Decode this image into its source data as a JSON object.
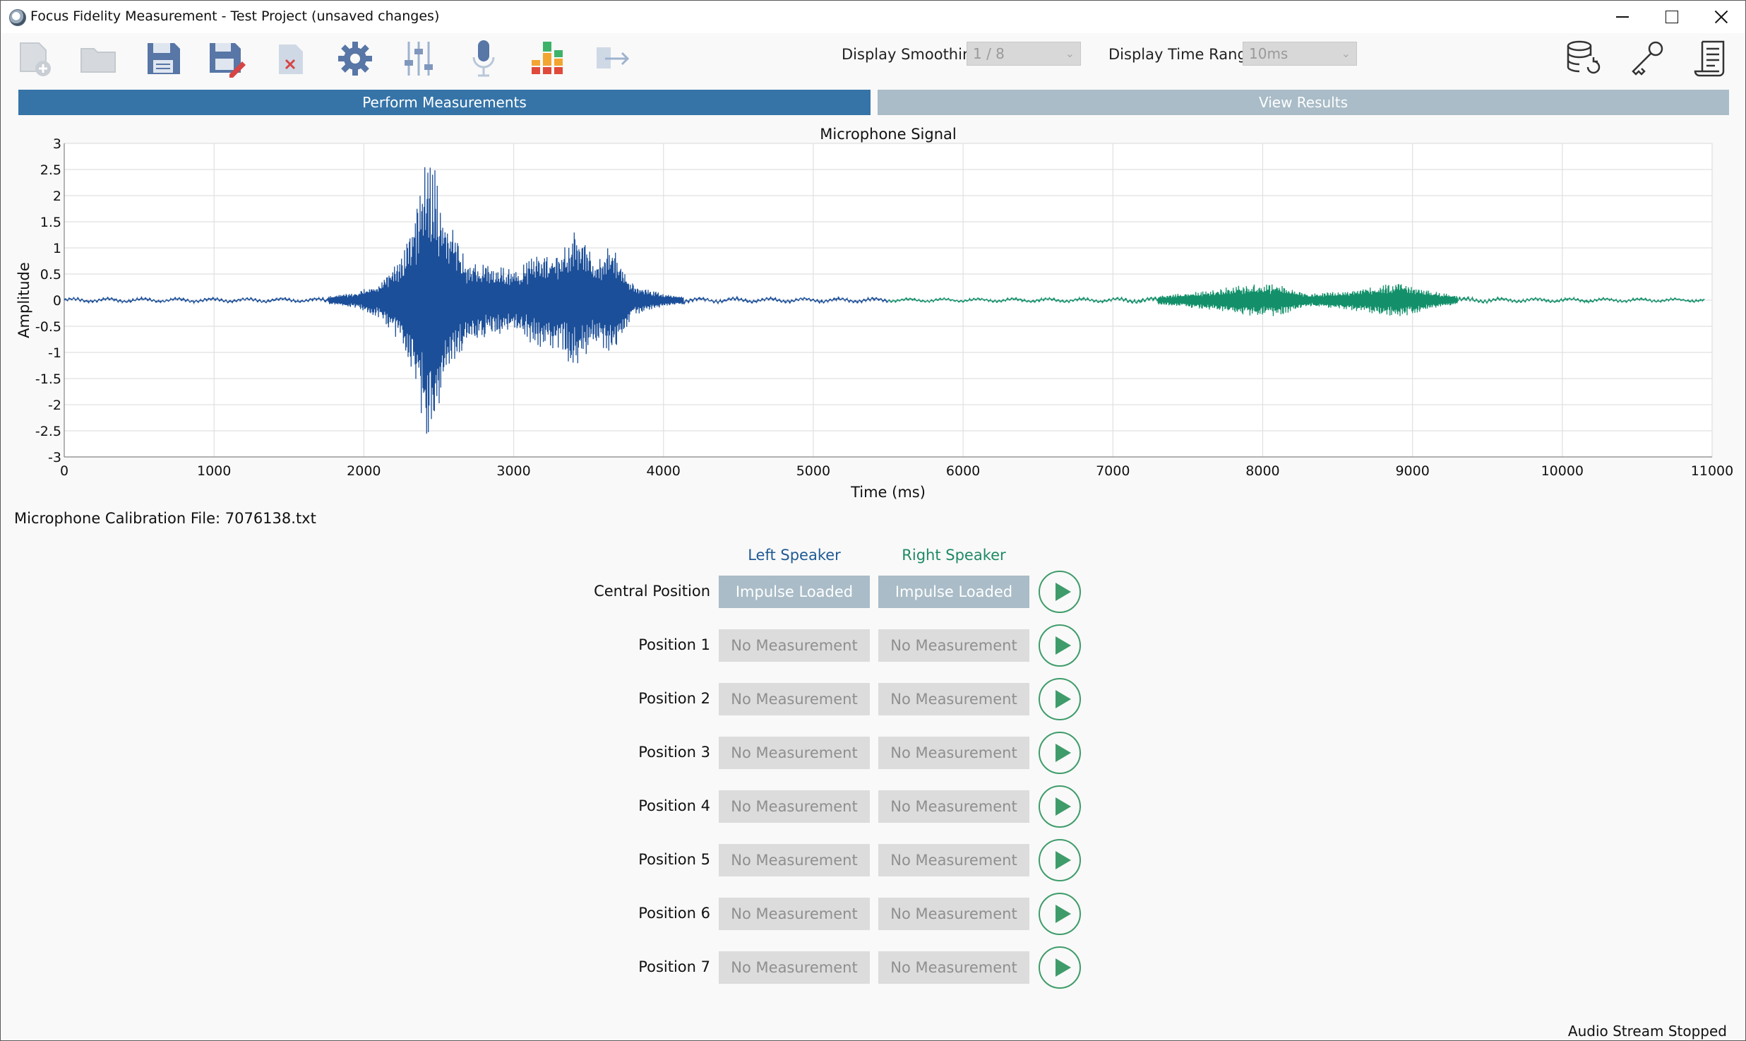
{
  "window": {
    "title": "Focus Fidelity Measurement - Test Project (unsaved changes)"
  },
  "toolbar": {
    "tools": [
      "new-project-icon",
      "open-folder-icon",
      "save-icon",
      "save-as-icon",
      "close-project-icon",
      "settings-gear-icon",
      "mixer-sliders-icon",
      "microphone-icon",
      "level-meter-icon",
      "export-arrow-icon"
    ],
    "smoothing_label": "Display Smoothing",
    "smoothing_value": "1 / 8",
    "time_range_label": "Display Time Range",
    "time_range_value": "10ms",
    "right_tools": [
      "database-refresh-icon",
      "key-icon",
      "document-scroll-icon"
    ]
  },
  "tabs": {
    "measure": "Perform Measurements",
    "results": "View Results"
  },
  "chart_data": {
    "type": "line",
    "title": "Microphone Signal",
    "xlabel": "Time (ms)",
    "ylabel": "Amplitude",
    "xlim": [
      0,
      11000
    ],
    "ylim": [
      -3,
      3
    ],
    "x_ticks": [
      0,
      1000,
      2000,
      3000,
      4000,
      5000,
      6000,
      7000,
      8000,
      9000,
      10000,
      11000
    ],
    "y_ticks": [
      3,
      2.5,
      2,
      1.5,
      1,
      0.5,
      0,
      -0.5,
      -1,
      -1.5,
      -2,
      -2.5,
      -3
    ],
    "grid": true,
    "series": [
      {
        "color": "#1c4f99",
        "x_range": [
          0,
          5500
        ],
        "envelope": [
          [
            0,
            0.05
          ],
          [
            1700,
            0.05
          ],
          [
            1800,
            0.1
          ],
          [
            1950,
            0.15
          ],
          [
            2100,
            0.35
          ],
          [
            2250,
            0.9
          ],
          [
            2350,
            1.8
          ],
          [
            2420,
            2.8
          ],
          [
            2470,
            2.6
          ],
          [
            2550,
            1.6
          ],
          [
            2700,
            0.8
          ],
          [
            2850,
            0.7
          ],
          [
            3000,
            0.6
          ],
          [
            3150,
            0.9
          ],
          [
            3300,
            0.95
          ],
          [
            3420,
            1.4
          ],
          [
            3550,
            0.8
          ],
          [
            3650,
            1.1
          ],
          [
            3800,
            0.3
          ],
          [
            4000,
            0.12
          ],
          [
            4200,
            0.06
          ],
          [
            5500,
            0.05
          ]
        ]
      },
      {
        "color": "#13906a",
        "x_range": [
          5500,
          10950
        ],
        "envelope": [
          [
            5500,
            0.04
          ],
          [
            7000,
            0.05
          ],
          [
            7300,
            0.08
          ],
          [
            7600,
            0.18
          ],
          [
            7900,
            0.3
          ],
          [
            8100,
            0.32
          ],
          [
            8300,
            0.12
          ],
          [
            8600,
            0.2
          ],
          [
            8900,
            0.34
          ],
          [
            9100,
            0.2
          ],
          [
            9300,
            0.08
          ],
          [
            9600,
            0.05
          ],
          [
            10950,
            0.04
          ]
        ]
      }
    ]
  },
  "calibration": "Microphone Calibration File: 7076138.txt",
  "speakers": {
    "left": "Left Speaker",
    "right": "Right Speaker"
  },
  "positions": [
    {
      "label": "Central Position",
      "left": "Impulse Loaded",
      "right": "Impulse Loaded",
      "loaded": true
    },
    {
      "label": "Position 1",
      "left": "No Measurement",
      "right": "No Measurement",
      "loaded": false
    },
    {
      "label": "Position 2",
      "left": "No Measurement",
      "right": "No Measurement",
      "loaded": false
    },
    {
      "label": "Position 3",
      "left": "No Measurement",
      "right": "No Measurement",
      "loaded": false
    },
    {
      "label": "Position 4",
      "left": "No Measurement",
      "right": "No Measurement",
      "loaded": false
    },
    {
      "label": "Position 5",
      "left": "No Measurement",
      "right": "No Measurement",
      "loaded": false
    },
    {
      "label": "Position 6",
      "left": "No Measurement",
      "right": "No Measurement",
      "loaded": false
    },
    {
      "label": "Position 7",
      "left": "No Measurement",
      "right": "No Measurement",
      "loaded": false
    }
  ],
  "status": "Audio Stream Stopped"
}
